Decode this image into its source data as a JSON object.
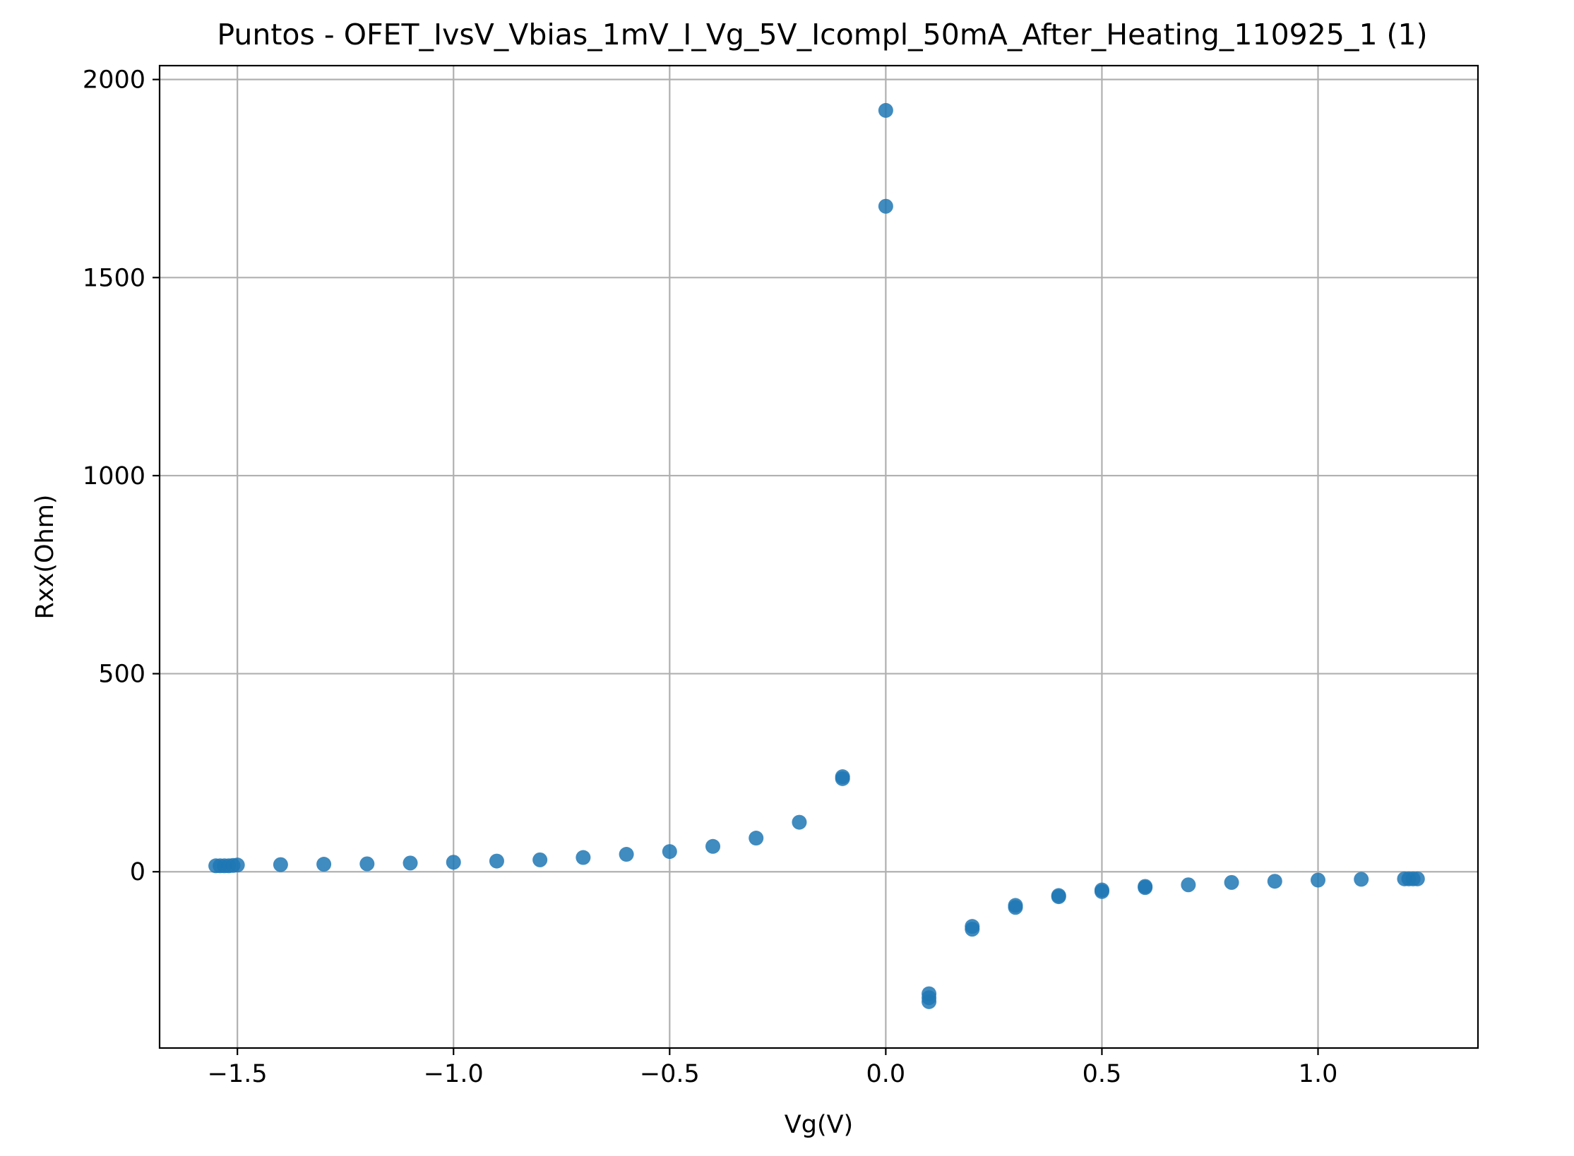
{
  "chart_data": {
    "type": "scatter",
    "title": "Puntos - OFET_IvsV_Vbias_1mV_I_Vg_5V_Icompl_50mA_After_Heating_110925_1 (1)",
    "xlabel": "Vg(V)",
    "ylabel": "Rxx(Ohm)",
    "xlim": [
      -1.68,
      1.37
    ],
    "ylim": [
      -445,
      2035
    ],
    "xticks": [
      -1.5,
      -1.0,
      -0.5,
      0.0,
      0.5,
      1.0
    ],
    "xtick_labels": [
      "−1.5",
      "−1.0",
      "−0.5",
      "0.0",
      "0.5",
      "1.0"
    ],
    "yticks": [
      0,
      500,
      1000,
      1500,
      2000
    ],
    "ytick_labels": [
      "0",
      "500",
      "1000",
      "1500",
      "2000"
    ],
    "grid": true,
    "marker_color": "#1f77b4",
    "series": [
      {
        "name": "",
        "x": [
          -1.55,
          -1.54,
          -1.53,
          -1.52,
          -1.51,
          -1.5,
          -1.4,
          -1.3,
          -1.2,
          -1.1,
          -1.0,
          -0.9,
          -0.8,
          -0.7,
          -0.6,
          -0.5,
          -0.4,
          -0.3,
          -0.2,
          -0.1,
          -0.1,
          0.0,
          0.0,
          0.1,
          0.1,
          0.1,
          0.2,
          0.2,
          0.3,
          0.3,
          0.4,
          0.4,
          0.5,
          0.5,
          0.6,
          0.6,
          0.7,
          0.8,
          0.9,
          1.0,
          1.1,
          1.2,
          1.21,
          1.22,
          1.23
        ],
        "y": [
          15,
          15,
          15,
          15,
          16,
          17,
          18,
          19,
          20,
          22,
          24,
          27,
          30,
          36,
          44,
          51,
          64,
          85,
          125,
          235,
          240,
          1680,
          1922,
          -328,
          -318,
          -308,
          -145,
          -138,
          -90,
          -85,
          -63,
          -60,
          -50,
          -46,
          -40,
          -37,
          -33,
          -27,
          -24,
          -21,
          -19,
          -18,
          -18,
          -18,
          -18
        ]
      }
    ]
  }
}
